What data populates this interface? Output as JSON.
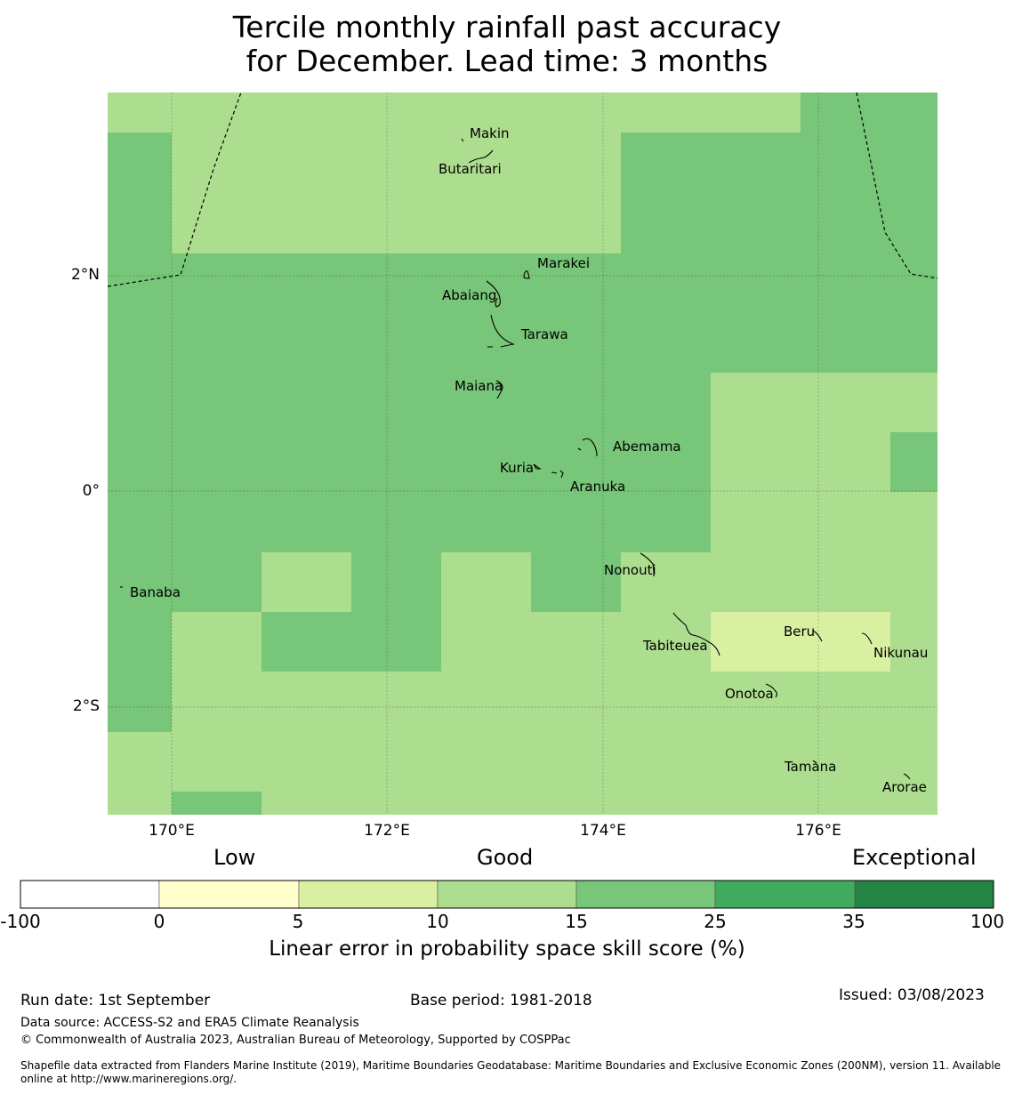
{
  "title": {
    "line1": "Tercile monthly rainfall past accuracy",
    "line2": "for December. Lead time: 3 months"
  },
  "map": {
    "lon_ticks": [
      "170°E",
      "172°E",
      "174°E",
      "176°E"
    ],
    "lat_ticks": [
      "2°N",
      "0°",
      "2°S"
    ],
    "islands": [
      "Makin",
      "Butaritari",
      "Marakei",
      "Abaiang",
      "Tarawa",
      "Maiana",
      "Abemama",
      "Kuria",
      "Aranuka",
      "Banaba",
      "Nonouti",
      "Tabiteuea",
      "Beru",
      "Nikunau",
      "Onotoa",
      "Tamana",
      "Arorae"
    ],
    "grid": [
      [
        3,
        3,
        3,
        3,
        3,
        3,
        3,
        3,
        4,
        4
      ],
      [
        4,
        3,
        3,
        3,
        3,
        3,
        4,
        4,
        4,
        4
      ],
      [
        4,
        3,
        3,
        3,
        3,
        3,
        4,
        4,
        4,
        4
      ],
      [
        4,
        4,
        4,
        4,
        4,
        4,
        4,
        4,
        4,
        4
      ],
      [
        4,
        4,
        4,
        4,
        4,
        4,
        4,
        4,
        4,
        4
      ],
      [
        4,
        4,
        4,
        4,
        4,
        4,
        4,
        3,
        3,
        3
      ],
      [
        4,
        4,
        4,
        4,
        4,
        4,
        4,
        3,
        3,
        4
      ],
      [
        4,
        4,
        4,
        4,
        4,
        4,
        4,
        3,
        3,
        3
      ],
      [
        4,
        4,
        3,
        4,
        3,
        4,
        3,
        3,
        3,
        3
      ],
      [
        4,
        3,
        4,
        4,
        3,
        3,
        3,
        2,
        2,
        3
      ],
      [
        4,
        3,
        3,
        3,
        3,
        3,
        3,
        3,
        3,
        3
      ],
      [
        3,
        3,
        3,
        3,
        3,
        3,
        3,
        3,
        3,
        3
      ],
      [
        3,
        4,
        3,
        3,
        3,
        3,
        3,
        3,
        3,
        3
      ]
    ]
  },
  "legend": {
    "categories": [
      "Low",
      "Good",
      "Exceptional"
    ],
    "bins": [
      "-100",
      "0",
      "5",
      "10",
      "15",
      "25",
      "35",
      "100"
    ],
    "colors": [
      "#ffffff",
      "#ffffcc",
      "#d9f0a3",
      "#addd8e",
      "#78c679",
      "#41ab5d",
      "#238443"
    ],
    "label": "Linear error in probability space skill score (%)"
  },
  "footer": {
    "run_date": "Run date: 1st September",
    "base_period": "Base period: 1981-2018",
    "issued": "Issued: 03/08/2023",
    "source": "Data source: ACCESS-S2 and ERA5 Climate Reanalysis",
    "copyright": "© Commonwealth of Australia 2023, Australian Bureau of Meteorology, Supported by COSPPac",
    "shapefile": "Shapefile data extracted from Flanders Marine Institute (2019), Maritime Boundaries Geodatabase: Maritime Boundaries and Exclusive Economic Zones (200NM), version 11. Available online at http://www.marineregions.org/."
  }
}
